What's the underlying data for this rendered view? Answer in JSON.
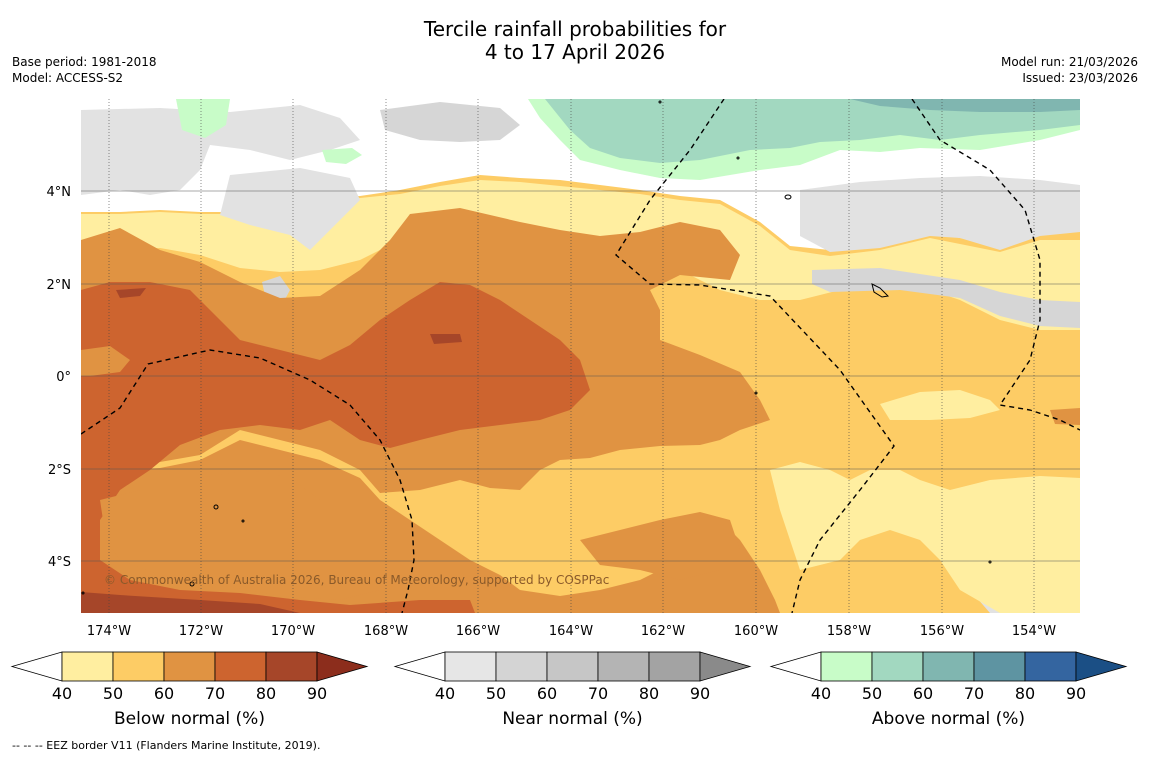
{
  "header": {
    "title_line1": "Tercile rainfall probabilities for",
    "title_line2": "4 to 17 April 2026",
    "base_period": "Base period: 1981-2018",
    "model": "Model: ACCESS-S2",
    "model_run": "Model run: 21/03/2026",
    "issued": "Issued: 23/03/2026"
  },
  "map": {
    "lon_ticks": [
      "174°W",
      "172°W",
      "170°W",
      "168°W",
      "166°W",
      "164°W",
      "162°W",
      "160°W",
      "158°W",
      "156°W",
      "154°W"
    ],
    "lat_ticks": [
      "4°N",
      "2°N",
      "0°",
      "2°S",
      "4°S"
    ],
    "copyright": "© Commonwealth of Australia 2026, Bureau of Meteorology, supported by COSPPac",
    "colors": {
      "below": [
        "#ffeea0",
        "#fdcc65",
        "#e09342",
        "#cd642f",
        "#a64629",
        "#8c2d1c"
      ],
      "near": [
        "#e6e6e6",
        "#d4d4d4",
        "#c6c6c6",
        "#b4b4b4",
        "#a3a3a3",
        "#8a8a8a"
      ],
      "above": [
        "#c8fcc8",
        "#a2d8c0",
        "#80b6b0",
        "#5e94a2",
        "#3465a0",
        "#1b4f85"
      ]
    }
  },
  "colorbars": {
    "ticks": [
      "40",
      "50",
      "60",
      "70",
      "80",
      "90"
    ],
    "below_label": "Below normal (%)",
    "near_label": "Near normal (%)",
    "above_label": "Above normal (%)"
  },
  "footer": {
    "eez_note": "--  --  -- EEZ border V11 (Flanders Marine Institute, 2019)."
  }
}
